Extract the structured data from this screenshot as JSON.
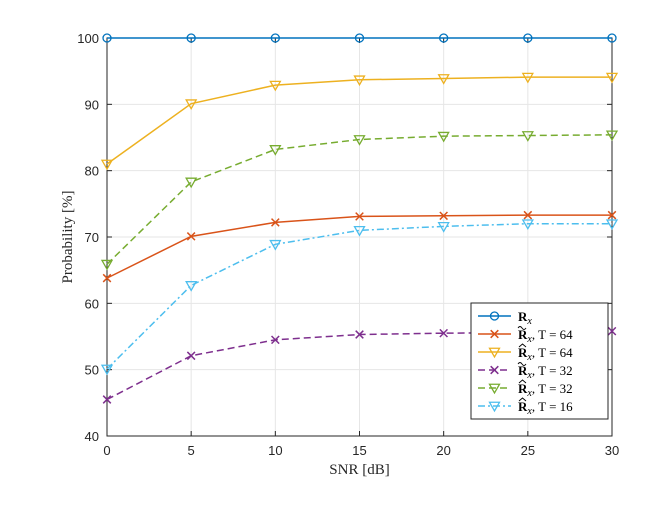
{
  "chart_data": {
    "type": "line",
    "title": "",
    "xlabel": "SNR [dB]",
    "ylabel": "Probability [%]",
    "xlim": [
      0,
      30
    ],
    "ylim": [
      40,
      100
    ],
    "xticks": [
      0,
      5,
      10,
      15,
      20,
      25,
      30
    ],
    "yticks": [
      40,
      50,
      60,
      70,
      80,
      90,
      100
    ],
    "grid": true,
    "legend_position": "bottom-right",
    "x": [
      0,
      5,
      10,
      15,
      20,
      25,
      30
    ],
    "series": [
      {
        "name": "R_x",
        "legend_main": "R",
        "legend_sub": "x",
        "legend_accent": "none",
        "legend_tail": "",
        "color": "#0072BD",
        "dash": "solid",
        "marker": "circle",
        "values": [
          100,
          100,
          100,
          100,
          100,
          100,
          100
        ]
      },
      {
        "name": "R~_x, T = 64",
        "legend_main": "R",
        "legend_sub": "x",
        "legend_accent": "tilde",
        "legend_tail": ", T = 64",
        "color": "#D95319",
        "dash": "solid",
        "marker": "x",
        "values": [
          63.8,
          70.1,
          72.2,
          73.1,
          73.2,
          73.3,
          73.3
        ]
      },
      {
        "name": "R^_x, T = 64",
        "legend_main": "R",
        "legend_sub": "x",
        "legend_accent": "hat",
        "legend_tail": ", T = 64",
        "color": "#EDB120",
        "dash": "solid",
        "marker": "triangle-down",
        "values": [
          81,
          90.1,
          92.9,
          93.7,
          93.9,
          94.1,
          94.1
        ]
      },
      {
        "name": "R~_x, T = 32",
        "legend_main": "R",
        "legend_sub": "x",
        "legend_accent": "tilde",
        "legend_tail": ", T = 32",
        "color": "#7E2F8E",
        "dash": "dashed",
        "marker": "x",
        "values": [
          45.5,
          52.1,
          54.5,
          55.3,
          55.5,
          55.6,
          55.8
        ]
      },
      {
        "name": "R^_x, T = 32",
        "legend_main": "R",
        "legend_sub": "x",
        "legend_accent": "hat",
        "legend_tail": ", T = 32",
        "color": "#77AC30",
        "dash": "dashed",
        "marker": "triangle-down",
        "values": [
          65.9,
          78.3,
          83.2,
          84.7,
          85.2,
          85.3,
          85.4
        ]
      },
      {
        "name": "R^_x, T = 16",
        "legend_main": "R",
        "legend_sub": "x",
        "legend_accent": "hat",
        "legend_tail": ", T = 16",
        "color": "#4DBEEE",
        "dash": "dashdot",
        "marker": "triangle-down",
        "values": [
          50.1,
          62.7,
          68.9,
          71.0,
          71.6,
          72.0,
          72.0
        ]
      }
    ]
  }
}
